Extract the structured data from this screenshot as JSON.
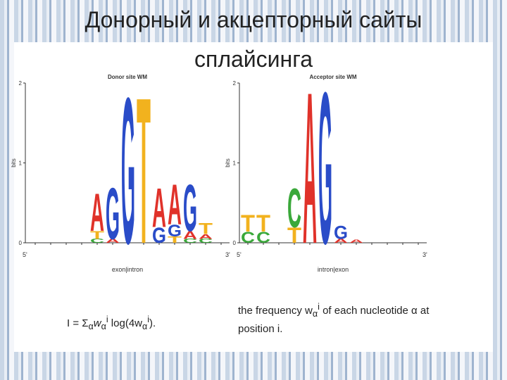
{
  "title": "Донорный и акцепторный сайты сплайсинга",
  "colors": {
    "A": "#e0322a",
    "C": "#3aa83a",
    "G": "#2a4cc8",
    "T": "#f2b21e"
  },
  "logos": [
    {
      "title": "Donor site WM",
      "ylabel": "bits",
      "ylim": [
        0,
        2
      ],
      "yticks": [
        0,
        1,
        2
      ],
      "start": "5'",
      "end": "3'",
      "xlabel": "exon|intron",
      "columns": [
        [],
        [],
        [],
        [],
        [
          [
            "C",
            0.05
          ],
          [
            "T",
            0.1
          ],
          [
            "A",
            0.48
          ]
        ],
        [
          [
            "A",
            0.05
          ],
          [
            "G",
            0.66
          ]
        ],
        [
          [
            "G",
            1.88
          ]
        ],
        [
          [
            "T",
            1.88
          ]
        ],
        [
          [
            "G",
            0.2
          ],
          [
            "A",
            0.5
          ]
        ],
        [
          [
            "T",
            0.08
          ],
          [
            "G",
            0.15
          ],
          [
            "A",
            0.52
          ]
        ],
        [
          [
            "C",
            0.05
          ],
          [
            "A",
            0.1
          ],
          [
            "G",
            0.6
          ]
        ],
        [
          [
            "C",
            0.05
          ],
          [
            "A",
            0.06
          ],
          [
            "T",
            0.14
          ]
        ],
        []
      ]
    },
    {
      "title": "Acceptor site WM",
      "ylabel": "bits",
      "ylim": [
        0,
        2
      ],
      "yticks": [
        0,
        1,
        2
      ],
      "start": "5'",
      "end": "3'",
      "xlabel": "intron|exon",
      "columns": [
        [
          [
            "C",
            0.14
          ],
          [
            "T",
            0.22
          ]
        ],
        [
          [
            "C",
            0.14
          ],
          [
            "T",
            0.22
          ]
        ],
        [],
        [
          [
            "T",
            0.2
          ],
          [
            "C",
            0.5
          ]
        ],
        [
          [
            "A",
            1.95
          ]
        ],
        [
          [
            "G",
            1.95
          ]
        ],
        [
          [
            "A",
            0.05
          ],
          [
            "G",
            0.17
          ]
        ],
        [
          [
            "A",
            0.04
          ]
        ],
        [],
        [],
        [],
        []
      ]
    }
  ],
  "formula": [
    "I = Σ",
    "α",
    "w",
    "α",
    "i",
    " log(4w",
    "α",
    "i",
    ")."
  ],
  "note": [
    "the frequency w",
    "α",
    "i",
    " of each nucleotide α at position i."
  ]
}
